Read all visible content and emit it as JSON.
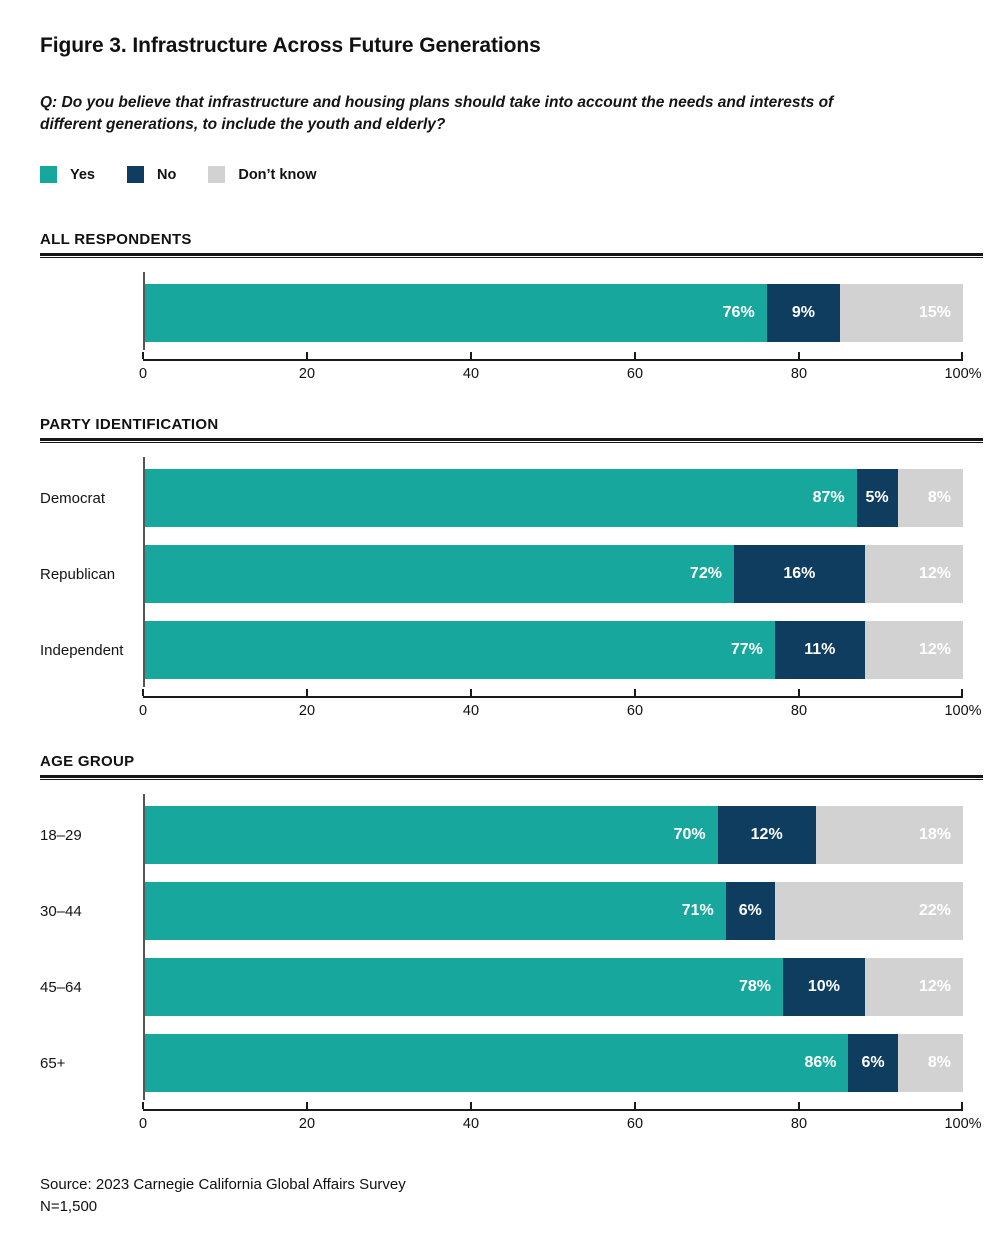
{
  "page": {
    "title": "Figure 3. Infrastructure Across Future Generations",
    "question": "Q: Do you believe that infrastructure and housing plans should take into account the needs and interests of different generations, to include the youth and elderly?",
    "source": "Source: 2023 Carnegie California Global Affairs Survey",
    "sample_size": "N=1,500"
  },
  "colors": {
    "yes": "#17a79c",
    "no": "#0e3d5f",
    "dont_know": "#d2d2d3",
    "value_label": "#ffffff",
    "axis": "#1a1a1a",
    "rule": "#161616"
  },
  "legend": [
    {
      "label": "Yes",
      "color": "#17a79c"
    },
    {
      "label": "No",
      "color": "#0e3d5f"
    },
    {
      "label": "Don’t know",
      "color": "#d2d2d3"
    }
  ],
  "x_axis": {
    "tick_values": [
      0,
      20,
      40,
      60,
      80,
      100
    ],
    "tick_labels": [
      "0",
      "20",
      "40",
      "60",
      "80",
      "100%"
    ]
  },
  "chart_data": [
    {
      "type": "bar",
      "stacked": true,
      "orientation": "horizontal",
      "section_title": "ALL RESPONDENTS",
      "xlim": [
        0,
        100
      ],
      "categories": [
        ""
      ],
      "series": [
        {
          "name": "Yes",
          "color": "#17a79c",
          "label_align": "right",
          "values": [
            76
          ]
        },
        {
          "name": "No",
          "color": "#0e3d5f",
          "label_align": "center",
          "values": [
            9
          ]
        },
        {
          "name": "Don’t know",
          "color": "#d2d2d3",
          "label_align": "right",
          "values": [
            15
          ]
        }
      ]
    },
    {
      "type": "bar",
      "stacked": true,
      "orientation": "horizontal",
      "section_title": "PARTY IDENTIFICATION",
      "xlim": [
        0,
        100
      ],
      "categories": [
        "Democrat",
        "Republican",
        "Independent"
      ],
      "series": [
        {
          "name": "Yes",
          "color": "#17a79c",
          "label_align": "right",
          "values": [
            87,
            72,
            77
          ]
        },
        {
          "name": "No",
          "color": "#0e3d5f",
          "label_align": "center",
          "values": [
            5,
            16,
            11
          ]
        },
        {
          "name": "Don’t know",
          "color": "#d2d2d3",
          "label_align": "right",
          "values": [
            8,
            12,
            12
          ]
        }
      ]
    },
    {
      "type": "bar",
      "stacked": true,
      "orientation": "horizontal",
      "section_title": "AGE GROUP",
      "xlim": [
        0,
        100
      ],
      "categories": [
        "18–29",
        "30–44",
        "45–64",
        "65+"
      ],
      "series": [
        {
          "name": "Yes",
          "color": "#17a79c",
          "label_align": "right",
          "values": [
            70,
            71,
            78,
            86
          ]
        },
        {
          "name": "No",
          "color": "#0e3d5f",
          "label_align": "center",
          "values": [
            12,
            6,
            10,
            6
          ]
        },
        {
          "name": "Don’t know",
          "color": "#d2d2d3",
          "label_align": "right",
          "values": [
            18,
            22,
            12,
            8
          ]
        }
      ]
    }
  ]
}
